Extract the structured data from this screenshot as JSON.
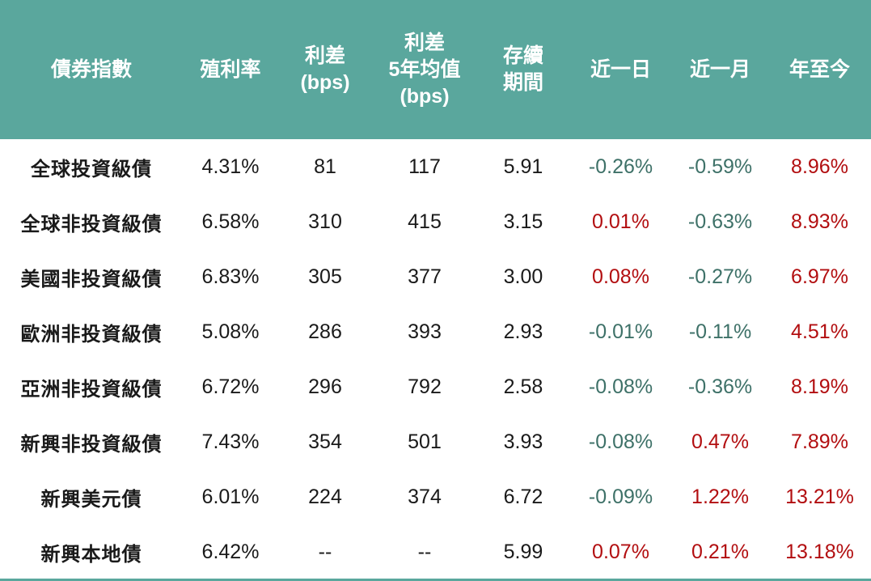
{
  "colors": {
    "header_bg": "#5aa79d",
    "header_text": "#ffffff",
    "positive_text": "#b20e10",
    "negative_text": "#3e7168",
    "body_text": "#1a1a1a"
  },
  "chart_data": {
    "type": "table",
    "columns": [
      {
        "key": "name",
        "label": "債券指數"
      },
      {
        "key": "yield",
        "label": "殖利率"
      },
      {
        "key": "spread",
        "label": "利差\n(bps)"
      },
      {
        "key": "spread5y",
        "label": "利差\n5年均值\n(bps)"
      },
      {
        "key": "duration",
        "label": "存續\n期間"
      },
      {
        "key": "day",
        "label": "近一日"
      },
      {
        "key": "month",
        "label": "近一月"
      },
      {
        "key": "ytd",
        "label": "年至今"
      }
    ],
    "rows": [
      {
        "name": "全球投資級債",
        "yield": "4.31%",
        "spread": "81",
        "spread5y": "117",
        "duration": "5.91",
        "day": "-0.26%",
        "month": "-0.59%",
        "ytd": "8.96%"
      },
      {
        "name": "全球非投資級債",
        "yield": "6.58%",
        "spread": "310",
        "spread5y": "415",
        "duration": "3.15",
        "day": "0.01%",
        "month": "-0.63%",
        "ytd": "8.93%"
      },
      {
        "name": "美國非投資級債",
        "yield": "6.83%",
        "spread": "305",
        "spread5y": "377",
        "duration": "3.00",
        "day": "0.08%",
        "month": "-0.27%",
        "ytd": "6.97%"
      },
      {
        "name": "歐洲非投資級債",
        "yield": "5.08%",
        "spread": "286",
        "spread5y": "393",
        "duration": "2.93",
        "day": "-0.01%",
        "month": "-0.11%",
        "ytd": "4.51%"
      },
      {
        "name": "亞洲非投資級債",
        "yield": "6.72%",
        "spread": "296",
        "spread5y": "792",
        "duration": "2.58",
        "day": "-0.08%",
        "month": "-0.36%",
        "ytd": "8.19%"
      },
      {
        "name": "新興非投資級債",
        "yield": "7.43%",
        "spread": "354",
        "spread5y": "501",
        "duration": "3.93",
        "day": "-0.08%",
        "month": "0.47%",
        "ytd": "7.89%"
      },
      {
        "name": "新興美元債",
        "yield": "6.01%",
        "spread": "224",
        "spread5y": "374",
        "duration": "6.72",
        "day": "-0.09%",
        "month": "1.22%",
        "ytd": "13.21%"
      },
      {
        "name": "新興本地債",
        "yield": "6.42%",
        "spread": "--",
        "spread5y": "--",
        "duration": "5.99",
        "day": "0.07%",
        "month": "0.21%",
        "ytd": "13.18%"
      }
    ]
  }
}
